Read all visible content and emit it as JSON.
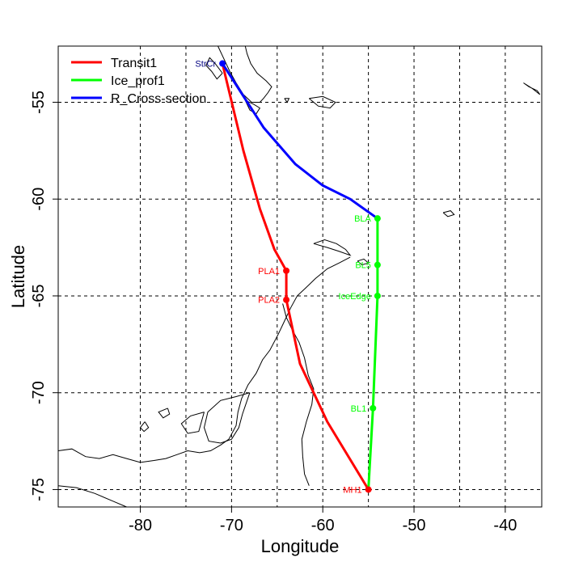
{
  "map": {
    "xlabel": "Longitude",
    "ylabel": "Latitude",
    "xlim": [
      -89,
      -36
    ],
    "ylim": [
      -75.9,
      -52.1
    ],
    "xticks": [
      -80,
      -70,
      -60,
      -50,
      -40
    ],
    "yticks": [
      -55,
      -60,
      -65,
      -70,
      -75
    ],
    "grid_x": [
      -80,
      -75,
      -70,
      -65,
      -60,
      -55,
      -50,
      -45,
      -40
    ],
    "grid_y": [
      -55,
      -60,
      -65,
      -70,
      -75
    ],
    "grid": true,
    "legend_position": "top-left"
  },
  "colors": {
    "transit": "#ff0000",
    "ice": "#00ff00",
    "cross": "#0000ff",
    "coast": "#000000",
    "grid": "#000000"
  },
  "legend": [
    {
      "label": "Transit1",
      "color": "#ff0000"
    },
    {
      "label": "Ice_prof1",
      "color": "#00ff00"
    },
    {
      "label": "R_Cross-section",
      "color": "#0000ff"
    }
  ],
  "routes": [
    {
      "name": "Transit1",
      "color": "#ff0000",
      "points": [
        [
          -71.0,
          -53.0
        ],
        [
          -68.7,
          -57.5
        ],
        [
          -66.9,
          -60.5
        ],
        [
          -65.3,
          -62.6
        ],
        [
          -64.0,
          -63.7
        ],
        [
          -64.0,
          -65.2
        ],
        [
          -62.5,
          -68.5
        ],
        [
          -59.5,
          -71.5
        ],
        [
          -55.0,
          -75.0
        ]
      ]
    },
    {
      "name": "Ice_prof1",
      "color": "#00ff00",
      "points": [
        [
          -54.0,
          -61.0
        ],
        [
          -54.0,
          -63.4
        ],
        [
          -54.0,
          -65.0
        ],
        [
          -54.5,
          -70.8
        ],
        [
          -55.0,
          -75.0
        ]
      ]
    },
    {
      "name": "R_Cross-section",
      "color": "#0000ff",
      "points": [
        [
          -71.0,
          -53.0
        ],
        [
          -66.5,
          -56.3
        ],
        [
          -63.0,
          -58.2
        ],
        [
          -60.0,
          -59.3
        ],
        [
          -57.0,
          -60.0
        ],
        [
          -54.0,
          -61.0
        ]
      ]
    }
  ],
  "stations": [
    {
      "label": "StrCr",
      "lon": -71.0,
      "lat": -53.0,
      "color": "#0000ff",
      "textColor": "#000080"
    },
    {
      "label": "PLA1",
      "lon": -64.0,
      "lat": -63.7,
      "color": "#ff0000",
      "textColor": "#ff0000"
    },
    {
      "label": "PLA2",
      "lon": -64.0,
      "lat": -65.2,
      "color": "#ff0000",
      "textColor": "#ff0000"
    },
    {
      "label": "MH1",
      "lon": -55.0,
      "lat": -75.0,
      "color": "#ff0000",
      "textColor": "#ff0000"
    },
    {
      "label": "BLA",
      "lon": -54.0,
      "lat": -61.0,
      "color": "#00ff00",
      "textColor": "#00ff00"
    },
    {
      "label": "BL5",
      "lon": -54.0,
      "lat": -63.4,
      "color": "#00ff00",
      "textColor": "#00ff00"
    },
    {
      "label": "IceEdge",
      "lon": -54.0,
      "lat": -65.0,
      "color": "#00ff00",
      "textColor": "#00ff00"
    },
    {
      "label": "BL1",
      "lon": -54.5,
      "lat": -70.8,
      "color": "#00ff00",
      "textColor": "#00ff00"
    }
  ],
  "coast": [
    [
      [
        -71.5,
        -52.1
      ],
      [
        -70.8,
        -52.8
      ],
      [
        -70.2,
        -53.4
      ],
      [
        -69.5,
        -54.0
      ],
      [
        -68.7,
        -54.6
      ],
      [
        -67.8,
        -55.0
      ],
      [
        -66.9,
        -55.0
      ],
      [
        -66.5,
        -54.8
      ],
      [
        -66.0,
        -54.5
      ],
      [
        -65.6,
        -54.2
      ],
      [
        -66.2,
        -53.9
      ],
      [
        -67.2,
        -53.5
      ],
      [
        -67.9,
        -53.0
      ],
      [
        -68.3,
        -52.5
      ],
      [
        -68.5,
        -52.1
      ]
    ],
    [
      [
        -71.0,
        -53.5
      ],
      [
        -71.6,
        -53.8
      ],
      [
        -72.2,
        -53.4
      ],
      [
        -72.8,
        -53.1
      ],
      [
        -72.4,
        -52.7
      ],
      [
        -71.8,
        -53.0
      ],
      [
        -71.0,
        -53.5
      ]
    ],
    [
      [
        -68.5,
        -54.9
      ],
      [
        -68.0,
        -55.4
      ],
      [
        -67.3,
        -55.6
      ],
      [
        -66.9,
        -55.3
      ],
      [
        -67.6,
        -55.1
      ],
      [
        -68.5,
        -54.9
      ]
    ],
    [
      [
        -61.5,
        -54.8
      ],
      [
        -60.0,
        -54.7
      ],
      [
        -58.6,
        -55.0
      ],
      [
        -59.2,
        -55.3
      ],
      [
        -60.5,
        -55.2
      ],
      [
        -61.5,
        -54.8
      ]
    ],
    [
      [
        -64.2,
        -54.8
      ],
      [
        -63.7,
        -54.8
      ],
      [
        -63.9,
        -55.0
      ],
      [
        -64.2,
        -54.8
      ]
    ],
    [
      [
        -38.0,
        -54.0
      ],
      [
        -37.0,
        -54.3
      ],
      [
        -36.2,
        -54.6
      ],
      [
        -36.5,
        -54.4
      ],
      [
        -37.4,
        -54.2
      ],
      [
        -38.0,
        -54.0
      ]
    ],
    [
      [
        -46.8,
        -60.7
      ],
      [
        -46.0,
        -60.6
      ],
      [
        -45.6,
        -60.8
      ],
      [
        -46.3,
        -60.9
      ],
      [
        -46.8,
        -60.7
      ]
    ],
    [
      [
        -61.0,
        -62.3
      ],
      [
        -59.8,
        -62.1
      ],
      [
        -58.5,
        -62.3
      ],
      [
        -57.5,
        -62.6
      ],
      [
        -57.0,
        -62.9
      ],
      [
        -58.2,
        -62.7
      ],
      [
        -59.5,
        -62.5
      ],
      [
        -61.0,
        -62.3
      ]
    ],
    [
      [
        -56.2,
        -63.2
      ],
      [
        -55.5,
        -63.1
      ],
      [
        -55.0,
        -63.3
      ],
      [
        -55.7,
        -63.4
      ],
      [
        -56.2,
        -63.2
      ]
    ],
    [
      [
        -57.0,
        -63.0
      ],
      [
        -58.2,
        -63.3
      ],
      [
        -59.5,
        -63.6
      ],
      [
        -60.8,
        -64.1
      ],
      [
        -61.9,
        -64.6
      ],
      [
        -62.8,
        -65.0
      ],
      [
        -63.5,
        -65.6
      ],
      [
        -64.2,
        -66.3
      ],
      [
        -64.9,
        -67.0
      ],
      [
        -65.8,
        -67.8
      ],
      [
        -66.6,
        -68.3
      ],
      [
        -67.3,
        -69.0
      ],
      [
        -68.2,
        -69.6
      ],
      [
        -68.9,
        -70.3
      ],
      [
        -69.3,
        -71.0
      ],
      [
        -69.5,
        -71.7
      ],
      [
        -70.3,
        -72.4
      ],
      [
        -71.2,
        -72.7
      ],
      [
        -72.3,
        -73.0
      ],
      [
        -73.5,
        -73.1
      ],
      [
        -74.8,
        -73.0
      ],
      [
        -76.0,
        -73.2
      ],
      [
        -77.2,
        -73.4
      ],
      [
        -78.5,
        -73.5
      ],
      [
        -80.0,
        -73.6
      ],
      [
        -81.5,
        -73.4
      ],
      [
        -83.0,
        -73.2
      ],
      [
        -84.5,
        -73.4
      ],
      [
        -86.0,
        -73.3
      ],
      [
        -87.5,
        -72.9
      ],
      [
        -89.0,
        -73.0
      ]
    ],
    [
      [
        -68.0,
        -70.0
      ],
      [
        -69.5,
        -70.2
      ],
      [
        -71.2,
        -70.4
      ],
      [
        -72.6,
        -71.0
      ],
      [
        -73.0,
        -71.8
      ],
      [
        -72.5,
        -72.5
      ],
      [
        -71.2,
        -72.6
      ],
      [
        -70.0,
        -72.4
      ],
      [
        -69.2,
        -71.8
      ],
      [
        -68.8,
        -71.1
      ],
      [
        -68.0,
        -70.0
      ]
    ],
    [
      [
        -73.0,
        -71.0
      ],
      [
        -74.5,
        -71.2
      ],
      [
        -75.5,
        -71.6
      ],
      [
        -74.8,
        -72.1
      ],
      [
        -73.6,
        -72.0
      ],
      [
        -73.0,
        -71.0
      ]
    ],
    [
      [
        -77.0,
        -70.8
      ],
      [
        -78.0,
        -71.0
      ],
      [
        -77.5,
        -71.3
      ],
      [
        -76.8,
        -71.1
      ],
      [
        -77.0,
        -70.8
      ]
    ],
    [
      [
        -79.5,
        -71.5
      ],
      [
        -80.0,
        -71.8
      ],
      [
        -79.6,
        -72.0
      ],
      [
        -79.1,
        -71.8
      ],
      [
        -79.5,
        -71.5
      ]
    ],
    [
      [
        -89.0,
        -74.8
      ],
      [
        -87.0,
        -74.9
      ],
      [
        -85.0,
        -75.2
      ],
      [
        -83.0,
        -75.6
      ],
      [
        -81.5,
        -75.9
      ]
    ],
    [
      [
        -61.5,
        -74.8
      ],
      [
        -62.0,
        -74.2
      ],
      [
        -62.2,
        -73.3
      ],
      [
        -62.3,
        -72.4
      ],
      [
        -61.8,
        -71.5
      ],
      [
        -61.2,
        -70.6
      ],
      [
        -61.0,
        -69.8
      ],
      [
        -61.6,
        -69.1
      ],
      [
        -62.0,
        -68.2
      ],
      [
        -62.6,
        -67.4
      ],
      [
        -63.4,
        -66.7
      ],
      [
        -64.0,
        -66.1
      ],
      [
        -64.4,
        -65.4
      ]
    ]
  ]
}
